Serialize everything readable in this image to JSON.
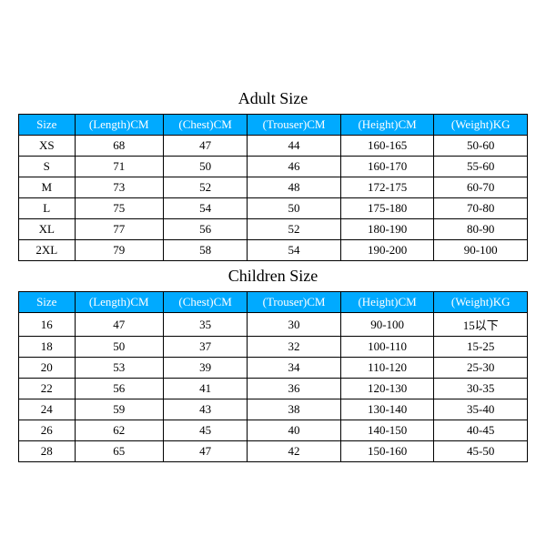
{
  "header_bg": "#00aaff",
  "header_text": "#ffffff",
  "border_color": "#000000",
  "columns": [
    "Size",
    "(Length)CM",
    "(Chest)CM",
    "(Trouser)CM",
    "(Height)CM",
    "(Weight)KG"
  ],
  "col_widths": [
    "60px",
    "95px",
    "90px",
    "100px",
    "100px",
    "100px"
  ],
  "adult": {
    "title": "Adult Size",
    "rows": [
      [
        "XS",
        "68",
        "47",
        "44",
        "160-165",
        "50-60"
      ],
      [
        "S",
        "71",
        "50",
        "46",
        "160-170",
        "55-60"
      ],
      [
        "M",
        "73",
        "52",
        "48",
        "172-175",
        "60-70"
      ],
      [
        "L",
        "75",
        "54",
        "50",
        "175-180",
        "70-80"
      ],
      [
        "XL",
        "77",
        "56",
        "52",
        "180-190",
        "80-90"
      ],
      [
        "2XL",
        "79",
        "58",
        "54",
        "190-200",
        "90-100"
      ]
    ]
  },
  "children": {
    "title": "Children Size",
    "rows": [
      [
        "16",
        "47",
        "35",
        "30",
        "90-100",
        "15以下"
      ],
      [
        "18",
        "50",
        "37",
        "32",
        "100-110",
        "15-25"
      ],
      [
        "20",
        "53",
        "39",
        "34",
        "110-120",
        "25-30"
      ],
      [
        "22",
        "56",
        "41",
        "36",
        "120-130",
        "30-35"
      ],
      [
        "24",
        "59",
        "43",
        "38",
        "130-140",
        "35-40"
      ],
      [
        "26",
        "62",
        "45",
        "40",
        "140-150",
        "40-45"
      ],
      [
        "28",
        "65",
        "47",
        "42",
        "150-160",
        "45-50"
      ]
    ]
  }
}
